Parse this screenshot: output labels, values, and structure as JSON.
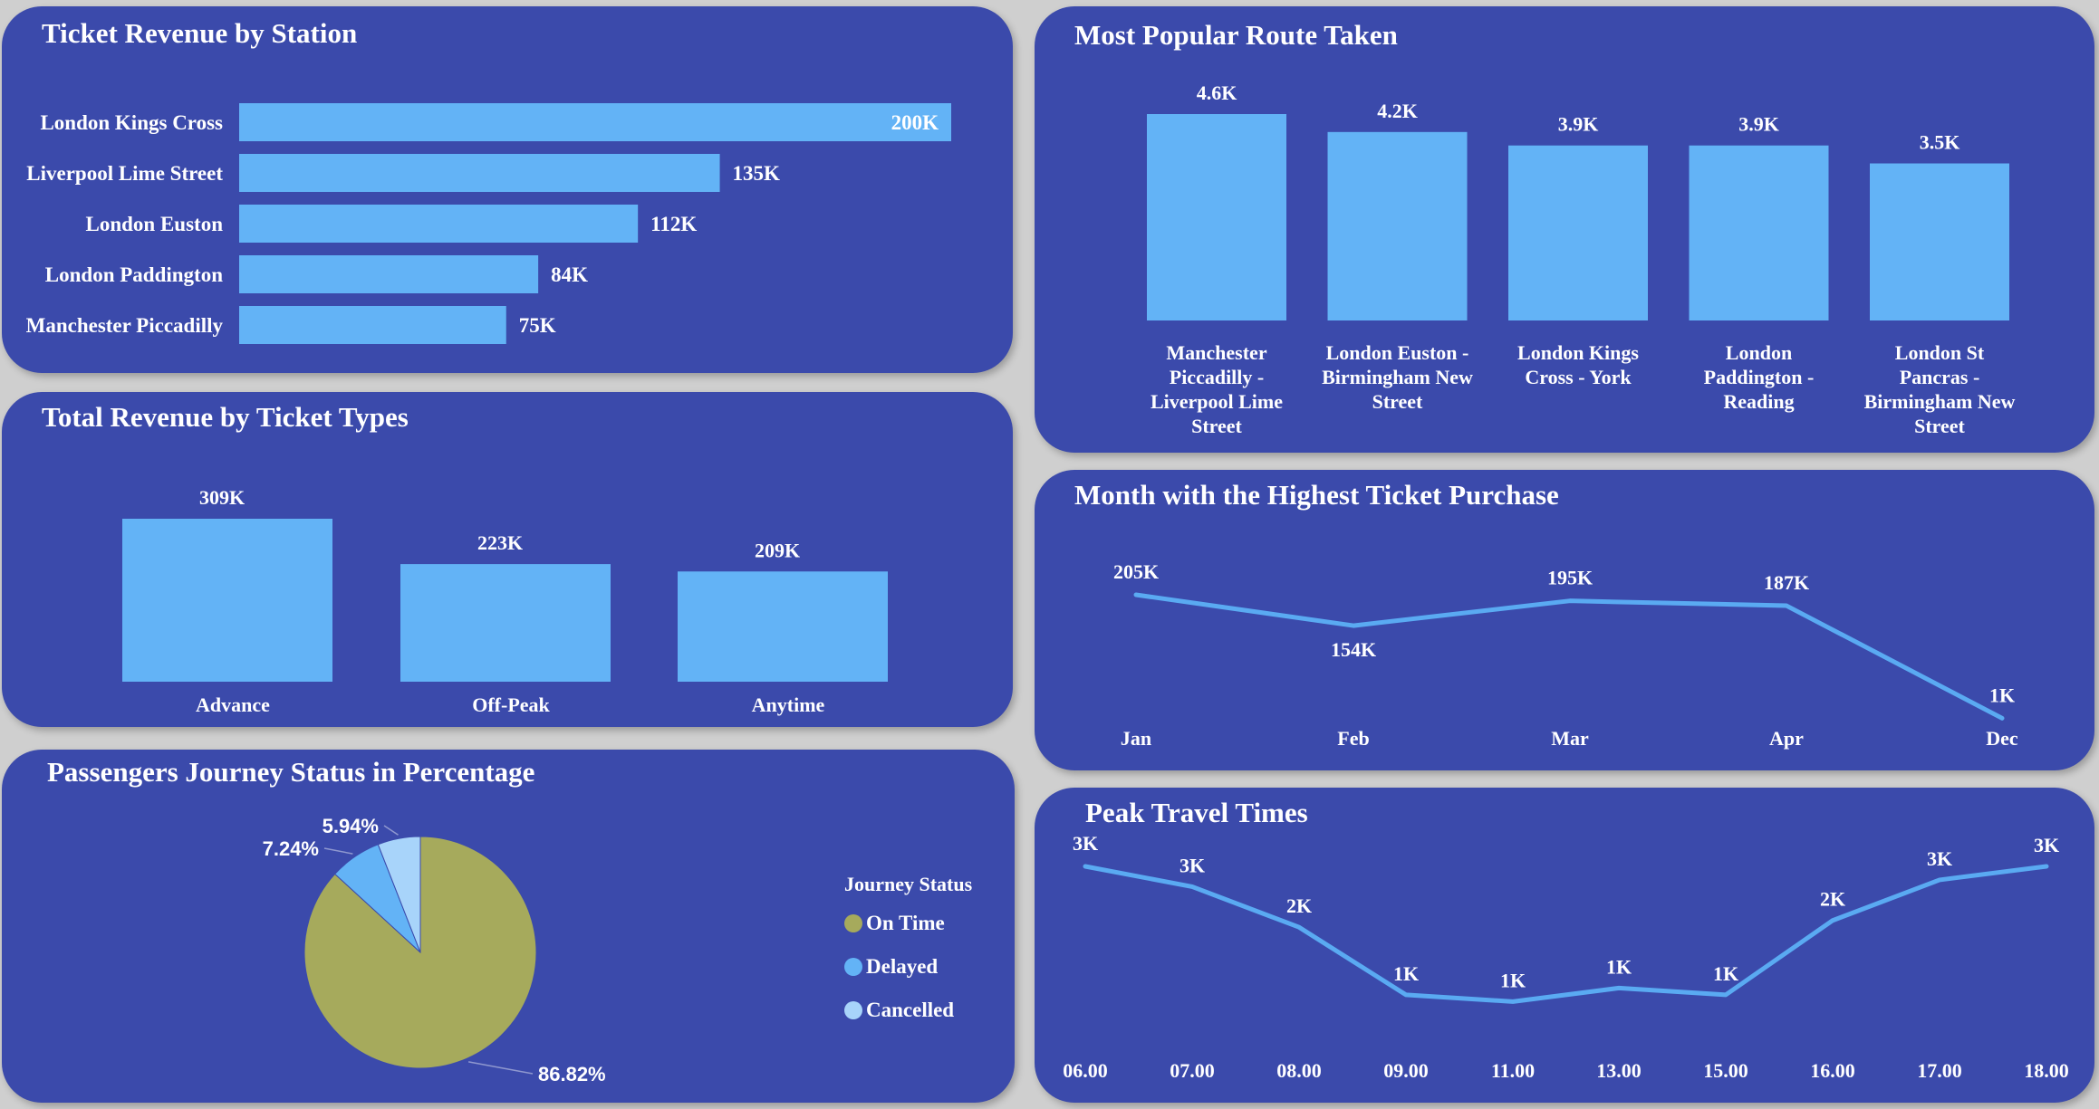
{
  "colors": {
    "panel": "#3b4aab",
    "bar": "#63b3f6",
    "line": "#5aaaf2",
    "on_time": "#a6aa5c",
    "delayed": "#63b3f6",
    "cancelled": "#a8d4fa"
  },
  "panels": {
    "station": {
      "title": "Ticket Revenue by Station"
    },
    "route": {
      "title": "Most Popular Route Taken"
    },
    "ticket_types": {
      "title": "Total Revenue by Ticket Types"
    },
    "month": {
      "title": "Month with the Highest Ticket Purchase"
    },
    "journey": {
      "title": "Passengers Journey Status in Percentage"
    },
    "peak": {
      "title": "Peak Travel Times"
    }
  },
  "chart_data": [
    {
      "id": "station",
      "type": "bar",
      "orientation": "horizontal",
      "categories": [
        "London Kings Cross",
        "Liverpool Lime Street",
        "London Euston",
        "London Paddington",
        "Manchester Piccadilly"
      ],
      "values": [
        200000,
        135000,
        112000,
        84000,
        75000
      ],
      "labels": [
        "200K",
        "135K",
        "112K",
        "84K",
        "75K"
      ],
      "xlim": [
        0,
        200000
      ]
    },
    {
      "id": "route",
      "type": "bar",
      "categories": [
        [
          "Manchester",
          "Piccadilly -",
          "Liverpool Lime",
          "Street"
        ],
        [
          "London Euston -",
          "Birmingham New",
          "Street"
        ],
        [
          "London Kings",
          "Cross - York"
        ],
        [
          "London",
          "Paddington -",
          "Reading"
        ],
        [
          "London St",
          "Pancras -",
          "Birmingham New",
          "Street"
        ]
      ],
      "values": [
        4600,
        4200,
        3900,
        3900,
        3500
      ],
      "labels": [
        "4.6K",
        "4.2K",
        "3.9K",
        "3.9K",
        "3.5K"
      ],
      "ylim": [
        0,
        4600
      ]
    },
    {
      "id": "ticket_types",
      "type": "bar",
      "categories": [
        "Advance",
        "Off-Peak",
        "Anytime"
      ],
      "values": [
        309000,
        223000,
        209000
      ],
      "labels": [
        "309K",
        "223K",
        "209K"
      ],
      "ylim": [
        0,
        309000
      ]
    },
    {
      "id": "month",
      "type": "line",
      "categories": [
        "Jan",
        "Feb",
        "Mar",
        "Apr",
        "Dec"
      ],
      "values": [
        205000,
        154000,
        195000,
        187000,
        1000
      ],
      "labels": [
        "205K",
        "154K",
        "195K",
        "187K",
        "1K"
      ],
      "ylim": [
        0,
        205000
      ]
    },
    {
      "id": "journey",
      "type": "pie",
      "legend_title": "Journey Status",
      "slices": [
        {
          "name": "On Time",
          "value": 86.82,
          "label": "86.82%"
        },
        {
          "name": "Delayed",
          "value": 7.24,
          "label": "7.24%"
        },
        {
          "name": "Cancelled",
          "value": 5.94,
          "label": "5.94%"
        }
      ]
    },
    {
      "id": "peak",
      "type": "line",
      "categories": [
        "06.00",
        "07.00",
        "08.00",
        "09.00",
        "11.00",
        "13.00",
        "15.00",
        "16.00",
        "17.00",
        "18.00"
      ],
      "values": [
        3000,
        2700,
        2100,
        1100,
        1000,
        1200,
        1100,
        2200,
        2800,
        3000
      ],
      "labels": [
        "3K",
        "3K",
        "2K",
        "1K",
        "1K",
        "1K",
        "1K",
        "2K",
        "3K",
        "3K"
      ],
      "ylim": [
        0,
        3000
      ]
    }
  ]
}
